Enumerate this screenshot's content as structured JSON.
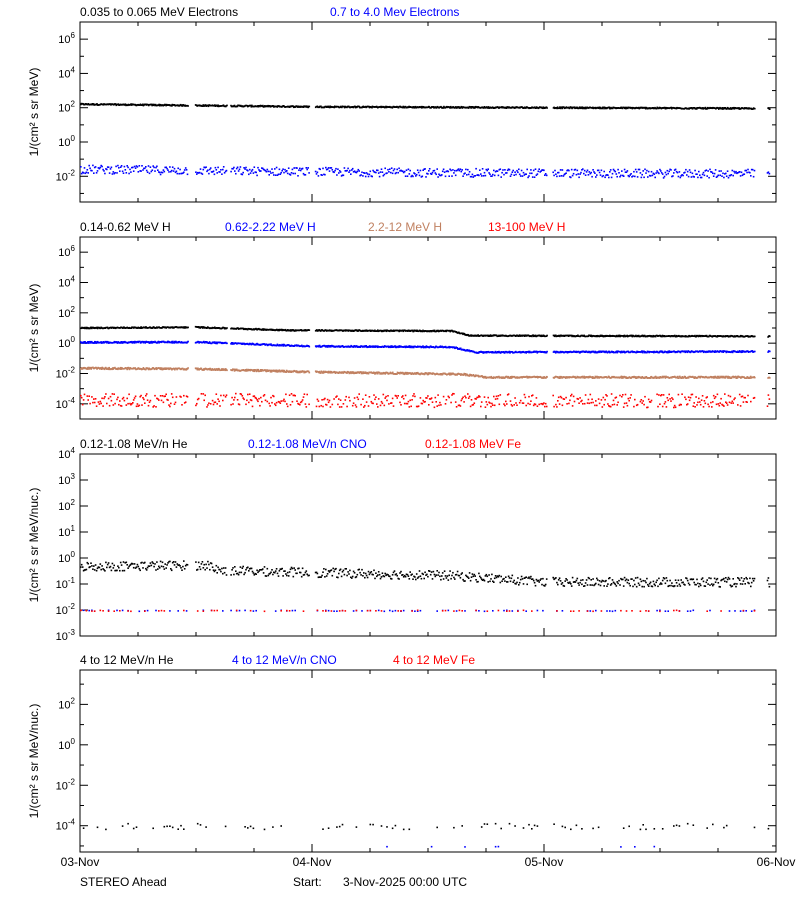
{
  "footer": {
    "left": "STEREO Ahead",
    "start_label": "Start:",
    "start_value": "3-Nov-2025 00:00 UTC"
  },
  "colors": {
    "black": "#000000",
    "blue": "#0000ff",
    "tan": "#c08060",
    "red": "#ff0000"
  },
  "chart_data": [
    {
      "type": "scatter",
      "title_items": [
        {
          "text": "0.035 to 0.065 MeV Electrons",
          "color": "#000000"
        },
        {
          "text": "0.7 to 4.0 Mev Electrons",
          "color": "#0000ff"
        }
      ],
      "ylabel": "1/(cm² s sr MeV)",
      "yscale": "log",
      "ylim_log10": [
        -3.5,
        7
      ],
      "ytick_exponents": [
        -2,
        0,
        2,
        4,
        6
      ],
      "x_dates": [
        "03-Nov",
        "04-Nov",
        "05-Nov",
        "06-Nov"
      ],
      "series": [
        {
          "color": "#000000",
          "shape": "flat",
          "points": [
            [
              0,
              2.25
            ],
            [
              1.0,
              2.1
            ],
            [
              2.0,
              2.05
            ],
            [
              2.9,
              2.0
            ]
          ],
          "jitter": 0.04
        },
        {
          "color": "#0000ff",
          "shape": "scatter",
          "points": [
            [
              0,
              -1.55
            ],
            [
              0.7,
              -1.65
            ],
            [
              1.5,
              -1.75
            ],
            [
              2.5,
              -1.8
            ],
            [
              3.0,
              -1.8
            ]
          ],
          "jitter": 0.25
        }
      ]
    },
    {
      "type": "scatter",
      "title_items": [
        {
          "text": "0.14-0.62 MeV H",
          "color": "#000000"
        },
        {
          "text": "0.62-2.22 MeV H",
          "color": "#0000ff"
        },
        {
          "text": "2.2-12 MeV H",
          "color": "#c08060"
        },
        {
          "text": "13-100 MeV H",
          "color": "#ff0000"
        }
      ],
      "ylabel": "1/(cm² s sr MeV)",
      "yscale": "log",
      "ylim_log10": [
        -5,
        7
      ],
      "ytick_exponents": [
        -4,
        -2,
        0,
        2,
        4,
        6
      ],
      "x_dates": [
        "03-Nov",
        "04-Nov",
        "05-Nov",
        "06-Nov"
      ],
      "series": [
        {
          "color": "#000000",
          "shape": "flat",
          "points": [
            [
              0,
              1.05
            ],
            [
              0.5,
              1.1
            ],
            [
              0.9,
              0.9
            ],
            [
              1.6,
              0.85
            ],
            [
              1.68,
              0.55
            ],
            [
              3.0,
              0.5
            ]
          ],
          "jitter": 0.04
        },
        {
          "color": "#0000ff",
          "shape": "flat",
          "points": [
            [
              0,
              0.1
            ],
            [
              0.5,
              0.12
            ],
            [
              1.0,
              -0.15
            ],
            [
              1.6,
              -0.2
            ],
            [
              1.7,
              -0.55
            ],
            [
              3.0,
              -0.5
            ]
          ],
          "jitter": 0.05
        },
        {
          "color": "#c08060",
          "shape": "flat",
          "points": [
            [
              0,
              -1.6
            ],
            [
              0.5,
              -1.65
            ],
            [
              1.0,
              -1.85
            ],
            [
              1.65,
              -2.0
            ],
            [
              1.75,
              -2.2
            ],
            [
              3.0,
              -2.2
            ]
          ],
          "jitter": 0.06
        },
        {
          "color": "#ff0000",
          "shape": "scatter",
          "points": [
            [
              0,
              -3.7
            ],
            [
              3.0,
              -3.75
            ]
          ],
          "jitter": 0.45
        }
      ]
    },
    {
      "type": "scatter",
      "title_items": [
        {
          "text": "0.12-1.08 MeV/n He",
          "color": "#000000"
        },
        {
          "text": "0.12-1.08 MeV/n CNO",
          "color": "#0000ff"
        },
        {
          "text": "0.12-1.08 MeV Fe",
          "color": "#ff0000"
        }
      ],
      "ylabel": "1/(cm² s sr MeV/nuc.)",
      "yscale": "log",
      "ylim_log10": [
        -3,
        4
      ],
      "ytick_exponents": [
        -3,
        -2,
        -1,
        0,
        1,
        2,
        3,
        4
      ],
      "x_dates": [
        "03-Nov",
        "04-Nov",
        "05-Nov",
        "06-Nov"
      ],
      "series": [
        {
          "color": "#000000",
          "shape": "scatter",
          "points": [
            [
              0,
              -0.3
            ],
            [
              0.55,
              -0.25
            ],
            [
              0.6,
              -0.45
            ],
            [
              1.6,
              -0.65
            ],
            [
              2.0,
              -0.9
            ],
            [
              3.0,
              -0.9
            ]
          ],
          "jitter": 0.18
        },
        {
          "color": "#0000ff",
          "shape": "sparse",
          "points": [
            [
              0,
              -2.0
            ],
            [
              3.0,
              -2.0
            ]
          ],
          "jitter": 0.02
        },
        {
          "color": "#ff0000",
          "shape": "sparse",
          "points": [
            [
              0,
              -2.0
            ],
            [
              3.0,
              -2.0
            ]
          ],
          "jitter": 0.02
        }
      ]
    },
    {
      "type": "scatter",
      "title_items": [
        {
          "text": "4 to 12 MeV/n He",
          "color": "#000000"
        },
        {
          "text": "4 to 12 MeV/n CNO",
          "color": "#0000ff"
        },
        {
          "text": "4 to 12 MeV Fe",
          "color": "#ff0000"
        }
      ],
      "ylabel": "1/(cm² s sr MeV/nuc.)",
      "yscale": "log",
      "ylim_log10": [
        -5.3,
        3.7
      ],
      "ytick_exponents": [
        -4,
        -2,
        0,
        2
      ],
      "x_dates": [
        "03-Nov",
        "04-Nov",
        "05-Nov",
        "06-Nov"
      ],
      "series": [
        {
          "color": "#000000",
          "shape": "sparse",
          "points": [
            [
              0,
              -4.0
            ],
            [
              3.0,
              -4.0
            ]
          ],
          "jitter": 0.15
        },
        {
          "color": "#0000ff",
          "shape": "sparse",
          "points": [
            [
              0,
              -5.0
            ],
            [
              3.0,
              -5.0
            ]
          ],
          "jitter": 0.01
        }
      ]
    }
  ]
}
